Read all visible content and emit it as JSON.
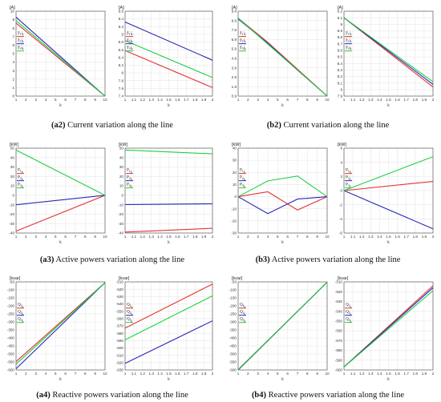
{
  "colors": {
    "red": "#e53232",
    "green": "#1fcf45",
    "blue": "#2727b8",
    "axis": "#444444",
    "grid": "#e3e3e3"
  },
  "captions": [
    {
      "tag": "(a2)",
      "text": " Current variation along the line"
    },
    {
      "tag": "(b2)",
      "text": " Current variation along the line"
    },
    {
      "tag": "(a3)",
      "text": " Active powers variation along the line"
    },
    {
      "tag": "(b3)",
      "text": " Active powers variation along the line"
    },
    {
      "tag": "(a4)",
      "text": " Reactive powers variation along the line"
    },
    {
      "tag": "(b4)",
      "text": " Reactive powers variation along the line"
    }
  ],
  "chart_data": [
    {
      "type": "line",
      "unit": "[A]",
      "xlabel": "k",
      "ylabel": "",
      "x": [
        1,
        10
      ],
      "xlim": [
        1,
        10
      ],
      "ylim": [
        0,
        10
      ],
      "xticks": [
        "1",
        "2",
        "3",
        "4",
        "5",
        "6",
        "7",
        "8",
        "9",
        "10"
      ],
      "yticks": [
        "0",
        "1",
        "2",
        "3",
        "4",
        "5",
        "6",
        "7",
        "8",
        "9",
        "10"
      ],
      "grid": true,
      "legend": "left",
      "series": [
        {
          "name": "|I1|k",
          "color": "red",
          "values": [
            8.6,
            0
          ]
        },
        {
          "name": "|I2|k",
          "color": "blue",
          "values": [
            9.3,
            0
          ]
        },
        {
          "name": "|I3|k",
          "color": "green",
          "values": [
            8.9,
            0
          ]
        }
      ]
    },
    {
      "type": "line",
      "unit": "[A]",
      "xlabel": "k",
      "ylabel": "",
      "x": [
        1,
        2
      ],
      "xlim": [
        1,
        2
      ],
      "ylim": [
        7.4,
        9.6
      ],
      "xticks": [
        "1",
        "1.1",
        "1.2",
        "1.3",
        "1.4",
        "1.5",
        "1.6",
        "1.7",
        "1.8",
        "1.9",
        "2"
      ],
      "yticks": [
        "7.4",
        "7.6",
        "7.8",
        "8",
        "8.2",
        "8.4",
        "8.6",
        "8.8",
        "9",
        "9.2",
        "9.4",
        "9.6"
      ],
      "grid": true,
      "legend": "left",
      "series": [
        {
          "name": "|I1|k",
          "color": "red",
          "values": [
            8.58,
            7.62
          ]
        },
        {
          "name": "|I2|k",
          "color": "blue",
          "values": [
            9.32,
            8.33
          ]
        },
        {
          "name": "|I3|k",
          "color": "green",
          "values": [
            8.84,
            7.88
          ]
        }
      ]
    },
    {
      "type": "line",
      "unit": "[A]",
      "xlabel": "k",
      "ylabel": "",
      "x": [
        1,
        4,
        7,
        10
      ],
      "xlim": [
        1,
        10
      ],
      "ylim": [
        0,
        9.8
      ],
      "xticks": [
        "1",
        "2",
        "3",
        "4",
        "5",
        "6",
        "7",
        "8",
        "9",
        "10"
      ],
      "yticks": [
        "0.9",
        "1.9",
        "2.9",
        "3.9",
        "4.9",
        "5.9",
        "6.9",
        "7.9",
        "8.9",
        "9.8"
      ],
      "grid": true,
      "legend": "left",
      "series": [
        {
          "name": "|I1|k",
          "color": "red",
          "values": [
            9.0,
            6.2,
            3.1,
            0
          ]
        },
        {
          "name": "|I2|k",
          "color": "blue",
          "values": [
            8.9,
            6.1,
            3.0,
            0
          ]
        },
        {
          "name": "|I3|k",
          "color": "green",
          "values": [
            9.0,
            6.0,
            3.0,
            0
          ]
        }
      ]
    },
    {
      "type": "line",
      "unit": "[A]",
      "xlabel": "k",
      "ylabel": "",
      "x": [
        1,
        2
      ],
      "xlim": [
        1,
        2
      ],
      "ylim": [
        7.9,
        9.2
      ],
      "xticks": [
        "1",
        "1.1",
        "1.2",
        "1.3",
        "1.4",
        "1.5",
        "1.6",
        "1.7",
        "1.8",
        "1.9",
        "2"
      ],
      "yticks": [
        "7.9",
        "8",
        "8.1",
        "8.2",
        "8.3",
        "8.4",
        "8.5",
        "8.6",
        "8.7",
        "8.8",
        "8.9",
        "9",
        "9.1",
        "9.2"
      ],
      "grid": true,
      "legend": "left",
      "series": [
        {
          "name": "|I1|k",
          "color": "red",
          "values": [
            9.1,
            8.04
          ]
        },
        {
          "name": "|I2|k",
          "color": "blue",
          "values": [
            9.1,
            8.08
          ]
        },
        {
          "name": "|I3|k",
          "color": "green",
          "values": [
            9.1,
            8.12
          ]
        }
      ]
    },
    {
      "type": "line",
      "unit": "[kW]",
      "xlabel": "k",
      "ylabel": "",
      "x": [
        1,
        10
      ],
      "xlim": [
        1,
        10
      ],
      "ylim": [
        -40,
        50
      ],
      "xticks": [
        "1",
        "2",
        "3",
        "4",
        "5",
        "6",
        "7",
        "8",
        "9",
        "10"
      ],
      "yticks": [
        "-40",
        "-30",
        "-20",
        "-10",
        "0",
        "10",
        "20",
        "30",
        "40",
        "50"
      ],
      "grid": true,
      "legend": "left",
      "series": [
        {
          "name": "P1k",
          "color": "red",
          "values": [
            -38,
            0
          ]
        },
        {
          "name": "P2k",
          "color": "blue",
          "values": [
            -10,
            0
          ]
        },
        {
          "name": "P3k",
          "color": "green",
          "values": [
            48,
            0
          ]
        }
      ]
    },
    {
      "type": "line",
      "unit": "[kW]",
      "xlabel": "k",
      "ylabel": "",
      "x": [
        1,
        2
      ],
      "xlim": [
        1,
        2
      ],
      "ylim": [
        -40,
        50
      ],
      "xticks": [
        "1",
        "1.1",
        "1.2",
        "1.3",
        "1.4",
        "1.5",
        "1.6",
        "1.7",
        "1.8",
        "1.9",
        "2"
      ],
      "yticks": [
        "-40",
        "-30",
        "-20",
        "-10",
        "0",
        "10",
        "20",
        "30",
        "40",
        "50"
      ],
      "grid": true,
      "legend": "left",
      "series": [
        {
          "name": "P1k",
          "color": "red",
          "values": [
            -39,
            -35
          ]
        },
        {
          "name": "P2k",
          "color": "blue",
          "values": [
            -9.8,
            -9
          ]
        },
        {
          "name": "P3k",
          "color": "green",
          "values": [
            48,
            44
          ]
        }
      ]
    },
    {
      "type": "line",
      "unit": "[kW]",
      "xlabel": "k",
      "ylabel": "",
      "x": [
        1,
        4,
        7,
        10
      ],
      "xlim": [
        1,
        10
      ],
      "ylim": [
        -30,
        40
      ],
      "xticks": [
        "1",
        "2",
        "3",
        "4",
        "5",
        "6",
        "7",
        "8",
        "9",
        "10"
      ],
      "yticks": [
        "-30",
        "-20",
        "-10",
        "0",
        "10",
        "20",
        "30",
        "40"
      ],
      "grid": true,
      "legend": "left",
      "series": [
        {
          "name": "P1k",
          "color": "red",
          "values": [
            0,
            4,
            -11,
            0
          ]
        },
        {
          "name": "P2k",
          "color": "blue",
          "values": [
            0,
            -14,
            -2,
            0
          ]
        },
        {
          "name": "P3k",
          "color": "green",
          "values": [
            0,
            13,
            17,
            0
          ]
        }
      ]
    },
    {
      "type": "line",
      "unit": "[kW]",
      "xlabel": "k",
      "ylabel": "",
      "x": [
        1,
        2
      ],
      "xlim": [
        1,
        2
      ],
      "ylim": [
        -6,
        6
      ],
      "xticks": [
        "1",
        "1.1",
        "1.2",
        "1.3",
        "1.4",
        "1.5",
        "1.6",
        "1.7",
        "1.8",
        "1.9",
        "2"
      ],
      "yticks": [
        "-6",
        "-4",
        "-2",
        "0",
        "2",
        "4",
        "6"
      ],
      "grid": true,
      "legend": "left",
      "series": [
        {
          "name": "P1k",
          "color": "red",
          "values": [
            0,
            1.3
          ]
        },
        {
          "name": "P2k",
          "color": "blue",
          "values": [
            0,
            -5.4
          ]
        },
        {
          "name": "P3k",
          "color": "green",
          "values": [
            0,
            4.8
          ]
        }
      ]
    },
    {
      "type": "line",
      "unit": "[kvar]",
      "xlabel": "k",
      "ylabel": "",
      "x": [
        1,
        10
      ],
      "xlim": [
        1,
        10
      ],
      "ylim": [
        -630,
        -50
      ],
      "xticks": [
        "1",
        "2",
        "3",
        "4",
        "5",
        "6",
        "7",
        "8",
        "9",
        "10"
      ],
      "yticks": [
        "-600",
        "-550",
        "-500",
        "-450",
        "-400",
        "-350",
        "-300",
        "-250",
        "-200",
        "-150",
        "-100",
        "-50"
      ],
      "grid": true,
      "legend": "left",
      "series": [
        {
          "name": "Q1k",
          "color": "red",
          "values": [
            -575,
            -55
          ]
        },
        {
          "name": "Q2k",
          "color": "blue",
          "values": [
            -622,
            -55
          ]
        },
        {
          "name": "Q3k",
          "color": "green",
          "values": [
            -592,
            -55
          ]
        }
      ]
    },
    {
      "type": "line",
      "unit": "[kvar]",
      "xlabel": "k",
      "ylabel": "",
      "x": [
        1,
        2
      ],
      "xlim": [
        1,
        2
      ],
      "ylim": [
        -630,
        -510
      ],
      "xticks": [
        "1",
        "1.1",
        "1.2",
        "1.3",
        "1.4",
        "1.5",
        "1.6",
        "1.7",
        "1.8",
        "1.9",
        "2"
      ],
      "yticks": [
        "-630",
        "-620",
        "-610",
        "-600",
        "-590",
        "-580",
        "-570",
        "-560",
        "-550",
        "-540",
        "-530",
        "-520",
        "-510"
      ],
      "grid": true,
      "legend": "left",
      "series": [
        {
          "name": "Q1k",
          "color": "red",
          "values": [
            -573,
            -513
          ]
        },
        {
          "name": "Q2k",
          "color": "blue",
          "values": [
            -621,
            -563
          ]
        },
        {
          "name": "Q3k",
          "color": "green",
          "values": [
            -589,
            -529
          ]
        }
      ]
    },
    {
      "type": "line",
      "unit": "[kvar]",
      "xlabel": "k",
      "ylabel": "",
      "x": [
        1,
        10
      ],
      "xlim": [
        1,
        10
      ],
      "ylim": [
        -600,
        -50
      ],
      "xticks": [
        "1",
        "2",
        "3",
        "4",
        "5",
        "6",
        "7",
        "8",
        "9",
        "10"
      ],
      "yticks": [
        "-600",
        "-550",
        "-500",
        "-450",
        "-400",
        "-350",
        "-300",
        "-250",
        "-200",
        "-150",
        "-100",
        "-50"
      ],
      "grid": true,
      "legend": "left",
      "series": [
        {
          "name": "Q1k",
          "color": "red",
          "values": [
            -598,
            -52
          ]
        },
        {
          "name": "Q2k",
          "color": "blue",
          "values": [
            -600,
            -52
          ]
        },
        {
          "name": "Q3k",
          "color": "green",
          "values": [
            -602,
            -52
          ]
        }
      ]
    },
    {
      "type": "line",
      "unit": "[kvar]",
      "xlabel": "k",
      "ylabel": "",
      "x": [
        1,
        2
      ],
      "xlim": [
        1,
        2
      ],
      "ylim": [
        -600,
        -510
      ],
      "xticks": [
        "1",
        "1.1",
        "1.2",
        "1.3",
        "1.4",
        "1.5",
        "1.6",
        "1.7",
        "1.8",
        "1.9",
        "2"
      ],
      "yticks": [
        "-600",
        "-590",
        "-580",
        "-570",
        "-560",
        "-550",
        "-540",
        "-530",
        "-520",
        "-510"
      ],
      "grid": true,
      "legend": "left",
      "series": [
        {
          "name": "Q1k",
          "color": "red",
          "values": [
            -597,
            -514
          ]
        },
        {
          "name": "Q2k",
          "color": "blue",
          "values": [
            -597,
            -516
          ]
        },
        {
          "name": "Q3k",
          "color": "green",
          "values": [
            -597,
            -519
          ]
        }
      ]
    }
  ]
}
